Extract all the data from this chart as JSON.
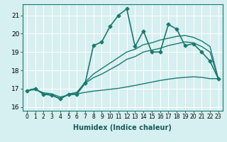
{
  "title": "",
  "xlabel": "Humidex (Indice chaleur)",
  "ylabel": "",
  "bg_color": "#d6eff0",
  "grid_color": "#ffffff",
  "line_color": "#1a7a6e",
  "xlim": [
    -0.5,
    23.5
  ],
  "ylim": [
    15.8,
    21.6
  ],
  "yticks": [
    16,
    17,
    18,
    19,
    20,
    21
  ],
  "xticks": [
    0,
    1,
    2,
    3,
    4,
    5,
    6,
    7,
    8,
    9,
    10,
    11,
    12,
    13,
    14,
    15,
    16,
    17,
    18,
    19,
    20,
    21,
    22,
    23
  ],
  "series": [
    {
      "x": [
        0,
        1,
        2,
        3,
        4,
        5,
        6,
        7,
        8,
        9,
        10,
        11,
        12,
        13,
        14,
        15,
        16,
        17,
        18,
        19,
        20,
        21,
        22,
        23
      ],
      "y": [
        16.9,
        17.0,
        16.7,
        16.65,
        16.45,
        16.7,
        16.7,
        17.3,
        19.35,
        19.55,
        20.4,
        21.0,
        21.35,
        19.3,
        20.15,
        19.0,
        19.0,
        20.5,
        20.25,
        19.35,
        19.45,
        19.0,
        18.5,
        17.55
      ],
      "marker": "D",
      "markersize": 2.5,
      "linewidth": 1.2
    },
    {
      "x": [
        0,
        1,
        2,
        3,
        4,
        5,
        6,
        7,
        8,
        9,
        10,
        11,
        12,
        13,
        14,
        15,
        16,
        17,
        18,
        19,
        20,
        21,
        22,
        23
      ],
      "y": [
        16.9,
        17.0,
        16.7,
        16.65,
        16.45,
        16.7,
        16.8,
        17.35,
        17.8,
        18.1,
        18.4,
        18.7,
        19.0,
        19.15,
        19.4,
        19.5,
        19.65,
        19.75,
        19.85,
        19.9,
        19.8,
        19.6,
        19.3,
        17.55
      ],
      "marker": null,
      "markersize": 0,
      "linewidth": 1.0
    },
    {
      "x": [
        0,
        1,
        2,
        3,
        4,
        5,
        6,
        7,
        8,
        9,
        10,
        11,
        12,
        13,
        14,
        15,
        16,
        17,
        18,
        19,
        20,
        21,
        22,
        23
      ],
      "y": [
        16.9,
        17.0,
        16.72,
        16.67,
        16.45,
        16.7,
        16.8,
        17.3,
        17.6,
        17.8,
        18.05,
        18.3,
        18.6,
        18.75,
        19.0,
        19.1,
        19.2,
        19.35,
        19.45,
        19.55,
        19.5,
        19.3,
        19.0,
        17.55
      ],
      "marker": null,
      "markersize": 0,
      "linewidth": 1.0
    },
    {
      "x": [
        0,
        1,
        2,
        3,
        4,
        5,
        6,
        7,
        8,
        9,
        10,
        11,
        12,
        13,
        14,
        15,
        16,
        17,
        18,
        19,
        20,
        21,
        22,
        23
      ],
      "y": [
        16.9,
        16.95,
        16.78,
        16.72,
        16.55,
        16.65,
        16.72,
        16.8,
        16.87,
        16.92,
        16.97,
        17.02,
        17.1,
        17.18,
        17.27,
        17.36,
        17.45,
        17.52,
        17.58,
        17.62,
        17.65,
        17.62,
        17.55,
        17.55
      ],
      "marker": null,
      "markersize": 0,
      "linewidth": 1.0
    }
  ]
}
